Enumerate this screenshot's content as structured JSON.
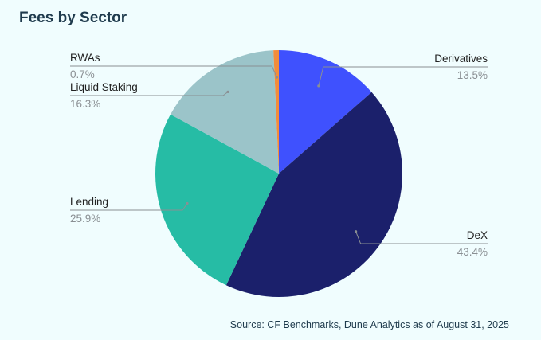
{
  "title": "Fees by Sector",
  "source": "Source: CF Benchmarks, Dune Analytics as of August 31, 2025",
  "chart_data": {
    "type": "pie",
    "title": "Fees by Sector",
    "slices": [
      {
        "label": "Derivatives",
        "value": 13.5,
        "pct_label": "13.5%",
        "color": "#3f51fe"
      },
      {
        "label": "DeX",
        "value": 43.4,
        "pct_label": "43.4%",
        "color": "#1b206b"
      },
      {
        "label": "Lending",
        "value": 25.9,
        "pct_label": "25.9%",
        "color": "#26bca5"
      },
      {
        "label": "Liquid Staking",
        "value": 16.3,
        "pct_label": "16.3%",
        "color": "#9bc4c9"
      },
      {
        "label": "RWAs",
        "value": 0.7,
        "pct_label": "0.7%",
        "color": "#f28c3c"
      }
    ]
  }
}
